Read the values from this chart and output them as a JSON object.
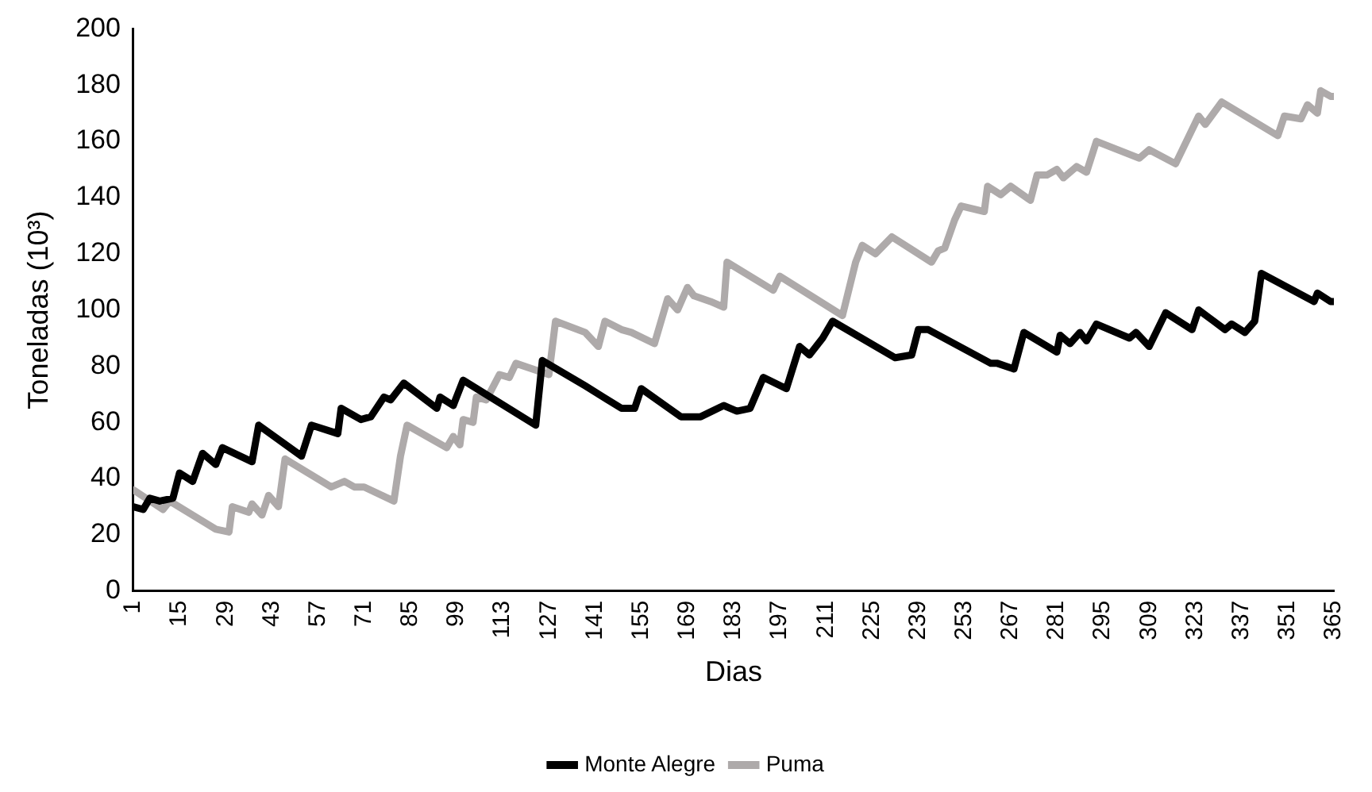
{
  "chart_data": {
    "type": "line",
    "xlabel": "Dias",
    "ylabel": "Toneladas (10³)",
    "xlim": [
      1,
      365
    ],
    "xticks": [
      1,
      15,
      29,
      43,
      57,
      71,
      85,
      99,
      113,
      127,
      141,
      155,
      169,
      183,
      197,
      211,
      225,
      239,
      253,
      267,
      281,
      295,
      309,
      323,
      337,
      351,
      365
    ],
    "ylim": [
      0,
      200
    ],
    "yticks": [
      0,
      20,
      40,
      60,
      80,
      100,
      120,
      140,
      160,
      180,
      200
    ],
    "grid": false,
    "legend": "bottom",
    "marker": "none",
    "line_style": "solid",
    "series": [
      {
        "name": "Monte Alegre",
        "color": "#000000",
        "x": [
          1,
          4,
          6,
          9,
          13,
          15,
          19,
          22,
          26,
          28,
          37,
          39,
          52,
          55,
          63,
          64,
          70,
          73,
          77,
          79,
          83,
          93,
          94,
          98,
          101,
          123,
          125,
          138,
          149,
          153,
          155,
          167,
          173,
          180,
          184,
          188,
          192,
          199,
          203,
          206,
          210,
          213,
          232,
          237,
          239,
          242,
          261,
          263,
          268,
          271,
          281,
          282,
          285,
          288,
          290,
          293,
          303,
          305,
          309,
          314,
          322,
          324,
          332,
          334,
          338,
          341,
          343,
          359,
          360,
          364,
          365
        ],
        "values": [
          30,
          29,
          33,
          32,
          33,
          42,
          39,
          49,
          45,
          51,
          46,
          59,
          48,
          59,
          56,
          65,
          61,
          62,
          69,
          68,
          74,
          65,
          69,
          66,
          75,
          59,
          82,
          73,
          65,
          65,
          72,
          62,
          62,
          66,
          64,
          65,
          76,
          72,
          87,
          84,
          90,
          96,
          83,
          84,
          93,
          93,
          81,
          81,
          79,
          92,
          85,
          91,
          88,
          92,
          89,
          95,
          90,
          92,
          87,
          99,
          93,
          100,
          93,
          95,
          92,
          96,
          113,
          103,
          106,
          103,
          103
        ]
      },
      {
        "name": "Puma",
        "color": "#aeaaaa",
        "x": [
          1,
          10,
          12,
          26,
          30,
          31,
          36,
          37,
          40,
          42,
          45,
          47,
          61,
          65,
          68,
          71,
          80,
          82,
          84,
          96,
          98,
          100,
          101,
          104,
          105,
          108,
          112,
          115,
          117,
          127,
          129,
          138,
          142,
          144,
          149,
          152,
          159,
          163,
          166,
          169,
          171,
          176,
          180,
          181,
          195,
          197,
          216,
          220,
          222,
          226,
          231,
          243,
          245,
          247,
          250,
          252,
          259,
          260,
          264,
          267,
          273,
          275,
          278,
          281,
          283,
          287,
          290,
          293,
          306,
          309,
          317,
          324,
          326,
          331,
          348,
          350,
          355,
          357,
          360,
          361,
          364,
          365
        ],
        "values": [
          36,
          29,
          32,
          22,
          21,
          30,
          28,
          31,
          27,
          34,
          30,
          47,
          37,
          39,
          37,
          37,
          32,
          48,
          59,
          51,
          55,
          52,
          61,
          60,
          69,
          68,
          77,
          76,
          81,
          77,
          96,
          92,
          87,
          96,
          93,
          92,
          88,
          104,
          100,
          108,
          105,
          103,
          101,
          117,
          107,
          112,
          98,
          117,
          123,
          120,
          126,
          117,
          121,
          122,
          132,
          137,
          135,
          144,
          141,
          144,
          139,
          148,
          148,
          150,
          147,
          151,
          149,
          160,
          154,
          157,
          152,
          169,
          166,
          174,
          162,
          169,
          168,
          173,
          170,
          178,
          176,
          176
        ]
      }
    ]
  }
}
